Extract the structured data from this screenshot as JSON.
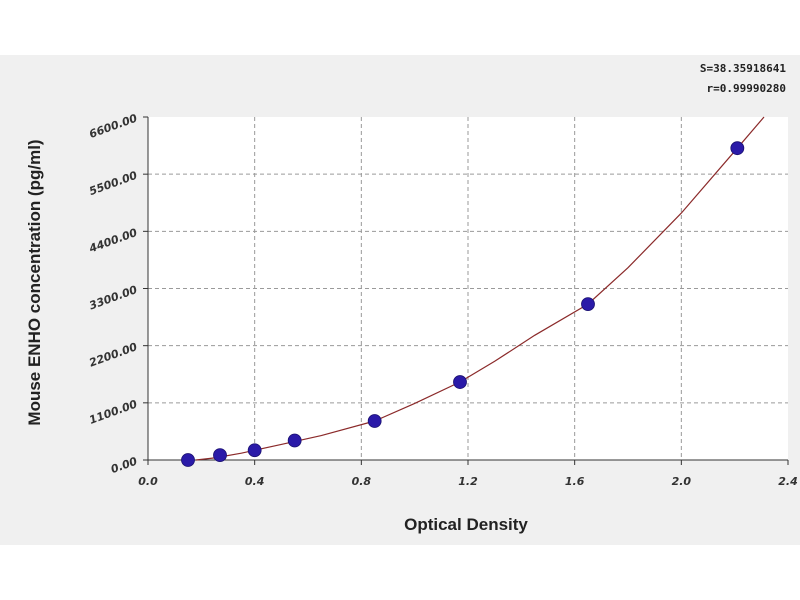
{
  "chart_data": {
    "type": "scatter",
    "xlabel": "Optical Density",
    "ylabel": "Mouse ENHO concentration (pg/ml)",
    "xlim": [
      0.0,
      2.4
    ],
    "ylim": [
      0.0,
      6600.0
    ],
    "x_ticks": [
      "0.0",
      "0.4",
      "0.8",
      "1.2",
      "1.6",
      "2.0",
      "2.4"
    ],
    "y_ticks": [
      "0.00",
      "1100.00",
      "2200.00",
      "3300.00",
      "4400.00",
      "5500.00",
      "6600.00"
    ],
    "grid": true,
    "stats": {
      "s": "S=38.35918641",
      "r": "r=0.99990280"
    },
    "series": [
      {
        "points": [
          {
            "x": 0.15,
            "y": 0
          },
          {
            "x": 0.27,
            "y": 94
          },
          {
            "x": 0.4,
            "y": 188
          },
          {
            "x": 0.55,
            "y": 375
          },
          {
            "x": 0.85,
            "y": 750
          },
          {
            "x": 1.17,
            "y": 1500
          },
          {
            "x": 1.65,
            "y": 3000
          },
          {
            "x": 2.21,
            "y": 6000
          }
        ],
        "marker_color": "#2a1aa8"
      }
    ],
    "fit_curve": {
      "color": "#8b2a2a",
      "points": [
        [
          0.18,
          0
        ],
        [
          0.25,
          40
        ],
        [
          0.35,
          130
        ],
        [
          0.5,
          300
        ],
        [
          0.65,
          470
        ],
        [
          0.85,
          750
        ],
        [
          1.0,
          1090
        ],
        [
          1.17,
          1500
        ],
        [
          1.3,
          1900
        ],
        [
          1.45,
          2400
        ],
        [
          1.65,
          3000
        ],
        [
          1.8,
          3700
        ],
        [
          2.0,
          4750
        ],
        [
          2.21,
          6000
        ],
        [
          2.31,
          6600
        ]
      ]
    }
  }
}
